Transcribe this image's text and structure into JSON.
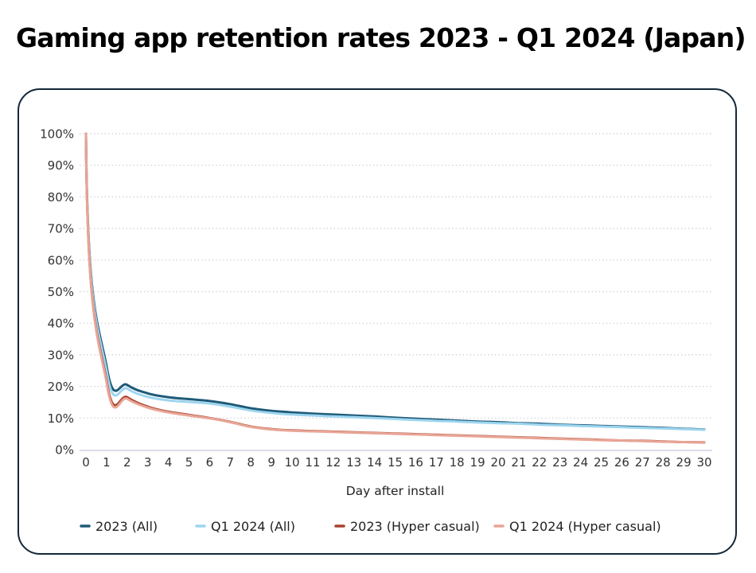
{
  "title": "Gaming app retention rates 2023 - Q1 2024 (Japan)",
  "chart_data": {
    "type": "line",
    "title": "Gaming app retention rates 2023 - Q1 2024 (Japan)",
    "xlabel": "Day after install",
    "ylabel": "",
    "x": [
      0,
      1,
      2,
      3,
      4,
      5,
      6,
      7,
      8,
      9,
      10,
      11,
      12,
      13,
      14,
      15,
      16,
      17,
      18,
      19,
      20,
      21,
      22,
      23,
      24,
      25,
      26,
      27,
      28,
      29,
      30
    ],
    "xlim": [
      0,
      30
    ],
    "ylim": [
      0,
      100
    ],
    "yticks": [
      0,
      10,
      20,
      30,
      40,
      50,
      60,
      70,
      80,
      90,
      100
    ],
    "ytick_labels": [
      "0%",
      "10%",
      "20%",
      "30%",
      "40%",
      "50%",
      "60%",
      "70%",
      "80%",
      "90%",
      "100%"
    ],
    "xtick_labels": [
      "0",
      "1",
      "2",
      "3",
      "4",
      "5",
      "6",
      "7",
      "8",
      "9",
      "10",
      "11",
      "12",
      "13",
      "14",
      "15",
      "16",
      "17",
      "18",
      "19",
      "20",
      "21",
      "22",
      "23",
      "24",
      "25",
      "26",
      "27",
      "28",
      "29",
      "30"
    ],
    "grid": "horizontal dotted",
    "legend_position": "bottom",
    "series": [
      {
        "name": "2023 (All)",
        "color": "#1e5a78",
        "values": [
          100,
          26.5,
          20.5,
          17.8,
          16.6,
          16.0,
          15.4,
          14.4,
          13.1,
          12.3,
          11.8,
          11.4,
          11.1,
          10.8,
          10.5,
          10.1,
          9.8,
          9.5,
          9.2,
          8.9,
          8.7,
          8.4,
          8.2,
          7.9,
          7.7,
          7.5,
          7.3,
          7.1,
          6.9,
          6.6,
          6.4
        ]
      },
      {
        "name": "Q1 2024 (All)",
        "color": "#9dd5ef",
        "values": [
          100,
          25.0,
          19.3,
          16.7,
          15.6,
          15.1,
          14.6,
          13.6,
          12.4,
          11.6,
          11.1,
          10.8,
          10.5,
          10.3,
          10.0,
          9.7,
          9.4,
          9.1,
          8.9,
          8.6,
          8.4,
          8.2,
          7.9,
          7.7,
          7.5,
          7.3,
          7.1,
          6.9,
          6.7,
          6.5,
          6.3
        ]
      },
      {
        "name": "2023 (Hyper casual)",
        "color": "#a8412e",
        "values": [
          100,
          22.0,
          16.6,
          13.6,
          12.0,
          11.0,
          10.0,
          8.8,
          7.3,
          6.5,
          6.1,
          5.9,
          5.7,
          5.5,
          5.3,
          5.1,
          4.9,
          4.7,
          4.5,
          4.3,
          4.1,
          3.9,
          3.7,
          3.5,
          3.3,
          3.1,
          2.9,
          2.8,
          2.6,
          2.4,
          2.3
        ]
      },
      {
        "name": "Q1 2024 (Hyper casual)",
        "color": "#e8a596",
        "values": [
          100,
          21.3,
          16.1,
          13.3,
          11.8,
          10.8,
          9.9,
          8.7,
          7.2,
          6.4,
          6.0,
          5.8,
          5.6,
          5.4,
          5.2,
          5.0,
          4.8,
          4.6,
          4.4,
          4.2,
          4.0,
          3.8,
          3.6,
          3.4,
          3.2,
          3.0,
          2.9,
          2.7,
          2.5,
          2.4,
          2.2
        ]
      }
    ]
  }
}
